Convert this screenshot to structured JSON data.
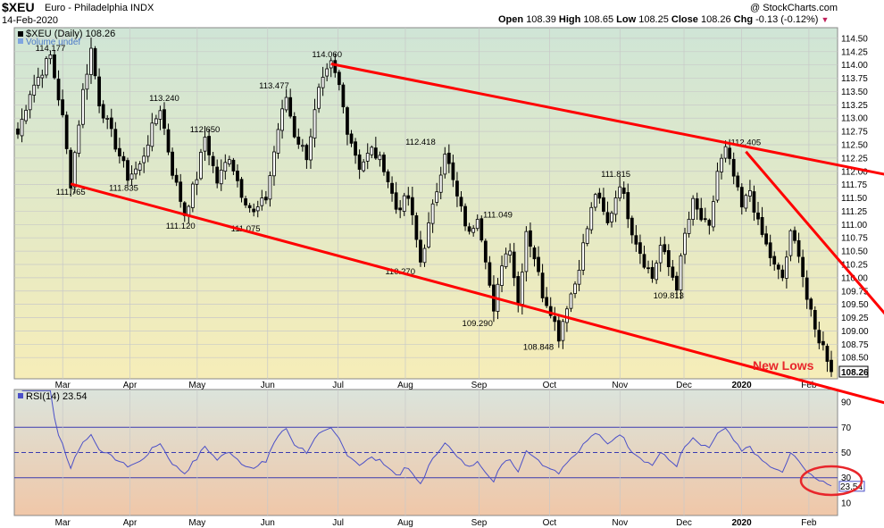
{
  "header": {
    "symbol": "$XEU",
    "name": "Euro - Philadelphia INDX",
    "date": "14-Feb-2020",
    "credit": "@ StockCharts.com",
    "open_label": "Open",
    "open": "108.39",
    "high_label": "High",
    "high": "108.65",
    "low_label": "Low",
    "low": "108.25",
    "close_label": "Close",
    "close": "108.26",
    "chg_label": "Chg",
    "chg": "-0.13 (-0.12%)"
  },
  "colors": {
    "price_bg_top": "#cfe5d6",
    "price_bg_bottom": "#f6edb8",
    "rsi_bg_top": "#dbe4dc",
    "rsi_bg_bottom": "#f0c7a8",
    "candle": "#000000",
    "trendline": "#ff0000",
    "rsi_line": "#4b50c8",
    "rsi_ref": "#3b3bb0",
    "annotation": "#e8262b"
  },
  "chart_data": [
    {
      "type": "candlestick",
      "title": "$XEU (Daily) 108.26",
      "legend": [
        "$XEU (Daily) 108.26",
        "Volume undef"
      ],
      "x_tick_labels": [
        "Mar",
        "Apr",
        "May",
        "Jun",
        "Jul",
        "Aug",
        "Sep",
        "Oct",
        "Nov",
        "Dec",
        "2020",
        "Feb"
      ],
      "ylim": [
        108.1,
        114.7
      ],
      "y_ticks": [
        108.5,
        108.75,
        109.0,
        109.25,
        109.5,
        109.75,
        110.0,
        110.25,
        110.5,
        110.75,
        111.0,
        111.25,
        111.5,
        111.75,
        112.0,
        112.25,
        112.5,
        112.75,
        113.0,
        113.25,
        113.5,
        113.75,
        114.0,
        114.25,
        114.5
      ],
      "y_tick_labels": [
        "108.50",
        "108.75",
        "109.00",
        "109.25",
        "109.50",
        "109.75",
        "110.00",
        "110.25",
        "110.50",
        "110.75",
        "111.00",
        "111.25",
        "111.50",
        "111.75",
        "112.00",
        "112.25",
        "112.50",
        "112.75",
        "113.00",
        "113.25",
        "113.50",
        "113.75",
        "114.00",
        "114.25",
        "114.50"
      ],
      "last_price_label": "108.26",
      "anchors": [
        {
          "i": 0,
          "v": 112.7
        },
        {
          "i": 3,
          "v": 113.5
        },
        {
          "i": 6,
          "v": 113.9
        },
        {
          "i": 8,
          "v": 114.17
        },
        {
          "i": 11,
          "v": 113.0
        },
        {
          "i": 13,
          "v": 111.78
        },
        {
          "i": 16,
          "v": 113.5
        },
        {
          "i": 18,
          "v": 114.3
        },
        {
          "i": 20,
          "v": 113.3
        },
        {
          "i": 24,
          "v": 112.5
        },
        {
          "i": 27,
          "v": 111.9
        },
        {
          "i": 30,
          "v": 112.1
        },
        {
          "i": 33,
          "v": 112.8
        },
        {
          "i": 35,
          "v": 113.2
        },
        {
          "i": 38,
          "v": 112.0
        },
        {
          "i": 41,
          "v": 111.2
        },
        {
          "i": 44,
          "v": 111.9
        },
        {
          "i": 46,
          "v": 112.65
        },
        {
          "i": 49,
          "v": 111.8
        },
        {
          "i": 52,
          "v": 112.3
        },
        {
          "i": 55,
          "v": 111.6
        },
        {
          "i": 58,
          "v": 111.2
        },
        {
          "i": 61,
          "v": 111.5
        },
        {
          "i": 64,
          "v": 112.8
        },
        {
          "i": 66,
          "v": 113.4
        },
        {
          "i": 68,
          "v": 112.7
        },
        {
          "i": 71,
          "v": 112.3
        },
        {
          "i": 74,
          "v": 113.5
        },
        {
          "i": 77,
          "v": 114.0
        },
        {
          "i": 79,
          "v": 113.6
        },
        {
          "i": 81,
          "v": 112.8
        },
        {
          "i": 84,
          "v": 112.1
        },
        {
          "i": 87,
          "v": 112.4
        },
        {
          "i": 90,
          "v": 112.1
        },
        {
          "i": 93,
          "v": 111.3
        },
        {
          "i": 96,
          "v": 111.5
        },
        {
          "i": 99,
          "v": 110.3
        },
        {
          "i": 102,
          "v": 111.3
        },
        {
          "i": 105,
          "v": 112.4
        },
        {
          "i": 108,
          "v": 111.5
        },
        {
          "i": 111,
          "v": 110.8
        },
        {
          "i": 113,
          "v": 111.2
        },
        {
          "i": 115,
          "v": 110.4
        },
        {
          "i": 117,
          "v": 109.3
        },
        {
          "i": 119,
          "v": 110.3
        },
        {
          "i": 121,
          "v": 110.6
        },
        {
          "i": 123,
          "v": 109.5
        },
        {
          "i": 125,
          "v": 110.9
        },
        {
          "i": 127,
          "v": 110.4
        },
        {
          "i": 129,
          "v": 109.7
        },
        {
          "i": 131,
          "v": 109.4
        },
        {
          "i": 133,
          "v": 108.9
        },
        {
          "i": 135,
          "v": 109.5
        },
        {
          "i": 137,
          "v": 109.9
        },
        {
          "i": 139,
          "v": 110.6
        },
        {
          "i": 142,
          "v": 111.6
        },
        {
          "i": 145,
          "v": 111.0
        },
        {
          "i": 148,
          "v": 111.8
        },
        {
          "i": 151,
          "v": 110.9
        },
        {
          "i": 154,
          "v": 110.3
        },
        {
          "i": 156,
          "v": 110.0
        },
        {
          "i": 158,
          "v": 110.6
        },
        {
          "i": 160,
          "v": 110.2
        },
        {
          "i": 162,
          "v": 109.85
        },
        {
          "i": 164,
          "v": 110.8
        },
        {
          "i": 166,
          "v": 111.4
        },
        {
          "i": 168,
          "v": 111.1
        },
        {
          "i": 170,
          "v": 110.9
        },
        {
          "i": 172,
          "v": 112.0
        },
        {
          "i": 174,
          "v": 112.4
        },
        {
          "i": 176,
          "v": 111.9
        },
        {
          "i": 178,
          "v": 111.3
        },
        {
          "i": 180,
          "v": 111.65
        },
        {
          "i": 182,
          "v": 111.0
        },
        {
          "i": 184,
          "v": 110.6
        },
        {
          "i": 186,
          "v": 110.2
        },
        {
          "i": 188,
          "v": 110.0
        },
        {
          "i": 190,
          "v": 110.8
        },
        {
          "i": 192,
          "v": 110.5
        },
        {
          "i": 194,
          "v": 109.6
        },
        {
          "i": 196,
          "v": 109.0
        },
        {
          "i": 198,
          "v": 108.7
        },
        {
          "i": 200,
          "v": 108.3
        }
      ],
      "value_labels": [
        {
          "text": "114.177",
          "i": 8,
          "v": 114.177,
          "pos": "above"
        },
        {
          "text": "113.240",
          "i": 36,
          "v": 113.24,
          "pos": "above"
        },
        {
          "text": "112.650",
          "i": 46,
          "v": 112.65,
          "pos": "above"
        },
        {
          "text": "111.765",
          "i": 13,
          "v": 111.765,
          "pos": "below"
        },
        {
          "text": "111.835",
          "i": 26,
          "v": 111.835,
          "pos": "below"
        },
        {
          "text": "111.120",
          "i": 40,
          "v": 111.12,
          "pos": "below"
        },
        {
          "text": "111.075",
          "i": 56,
          "v": 111.075,
          "pos": "below"
        },
        {
          "text": "113.477",
          "i": 63,
          "v": 113.477,
          "pos": "above"
        },
        {
          "text": "114.060",
          "i": 76,
          "v": 114.06,
          "pos": "above"
        },
        {
          "text": "112.418",
          "i": 99,
          "v": 112.418,
          "pos": "above"
        },
        {
          "text": "110.270",
          "i": 94,
          "v": 110.27,
          "pos": "below"
        },
        {
          "text": "111.049",
          "i": 118,
          "v": 111.049,
          "pos": "above"
        },
        {
          "text": "109.290",
          "i": 113,
          "v": 109.29,
          "pos": "below"
        },
        {
          "text": "108.848",
          "i": 128,
          "v": 108.848,
          "pos": "below"
        },
        {
          "text": "111.815",
          "i": 147,
          "v": 111.815,
          "pos": "above"
        },
        {
          "text": "109.813",
          "i": 160,
          "v": 109.813,
          "pos": "below"
        },
        {
          "text": "112.405",
          "i": 179,
          "v": 112.405,
          "pos": "above"
        }
      ],
      "trendlines": [
        {
          "from": {
            "i": 13,
            "v": 111.765
          },
          "to": {
            "i": 214,
            "v": 107.63
          }
        },
        {
          "from": {
            "i": 77,
            "v": 114.02
          },
          "to": {
            "i": 214,
            "v": 111.93
          }
        },
        {
          "from": {
            "i": 179,
            "v": 112.37
          },
          "to": {
            "i": 214,
            "v": 109.25
          }
        }
      ],
      "annotation": "New Lows"
    },
    {
      "type": "line",
      "title": "RSI(14) 23.54",
      "series": [
        {
          "name": "RSI(14) 23.54",
          "last_value": 23.54
        }
      ],
      "ylim": [
        0,
        100
      ],
      "y_ticks": [
        10,
        30,
        50,
        70,
        90
      ],
      "y_tick_labels": [
        "10",
        "30",
        "50",
        "70",
        "90"
      ],
      "reference_lines": [
        30,
        50,
        70
      ],
      "x_tick_labels": [
        "Mar",
        "Apr",
        "May",
        "Jun",
        "Jul",
        "Aug",
        "Sep",
        "Oct",
        "Nov",
        "Dec",
        "2020",
        "Feb"
      ],
      "last_value_label": "23.54"
    }
  ]
}
